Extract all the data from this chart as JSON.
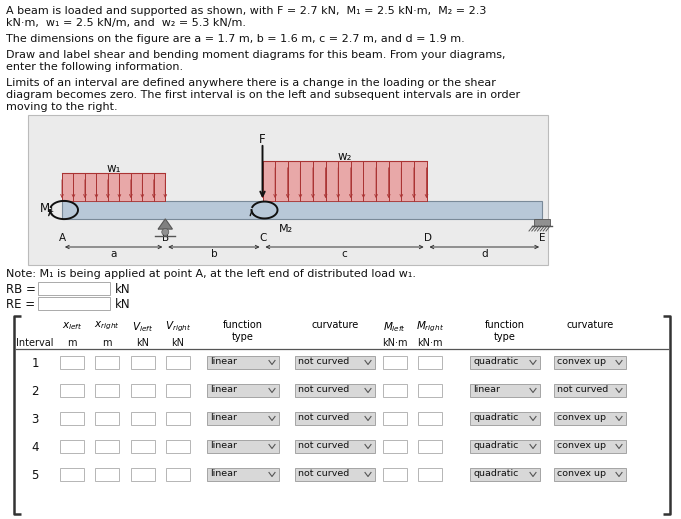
{
  "title_line1": "A beam is loaded and supported as shown, with F = 2.7 kN,  M₁ = 2.5 kN·m,  M₂ = 2.3",
  "title_line2": "kN·m,  w₁ = 2.5 kN/m, and  w₂ = 5.3 kN/m.",
  "dim_line": "The dimensions on the figure are a = 1.7 m, b = 1.6 m, c = 2.7 m, and d = 1.9 m.",
  "draw_line1": "Draw and label shear and bending moment diagrams for this beam. From your diagrams,",
  "draw_line2": "enter the following information.",
  "limits_line1": "Limits of an interval are defined anywhere there is a change in the loading or the shear",
  "limits_line2": "diagram becomes zero. The first interval is on the left and subsequent intervals are in order",
  "limits_line3": "moving to the right.",
  "note_line": "Note: M₁ is being applied at point A, at the left end of distributed load w₁.",
  "RB_label": "RB =",
  "RE_label": "RE =",
  "kN_unit": "kN",
  "intervals": [
    1,
    2,
    3,
    4,
    5
  ],
  "v_function": [
    "linear",
    "linear",
    "linear",
    "linear",
    "linear"
  ],
  "v_curvature": [
    "not curved",
    "not curved",
    "not curved",
    "not curved",
    "not curved"
  ],
  "m_function": [
    "quadratic",
    "linear",
    "quadratic",
    "quadratic",
    "quadratic"
  ],
  "m_curvature": [
    "convex up",
    "not curved",
    "convex up",
    "convex up",
    "convex up"
  ],
  "beam_fc": "#b8c8d8",
  "load_fc": "#d4888888",
  "load_ec": "#aa3333",
  "diag_bg": "#ebebeb"
}
